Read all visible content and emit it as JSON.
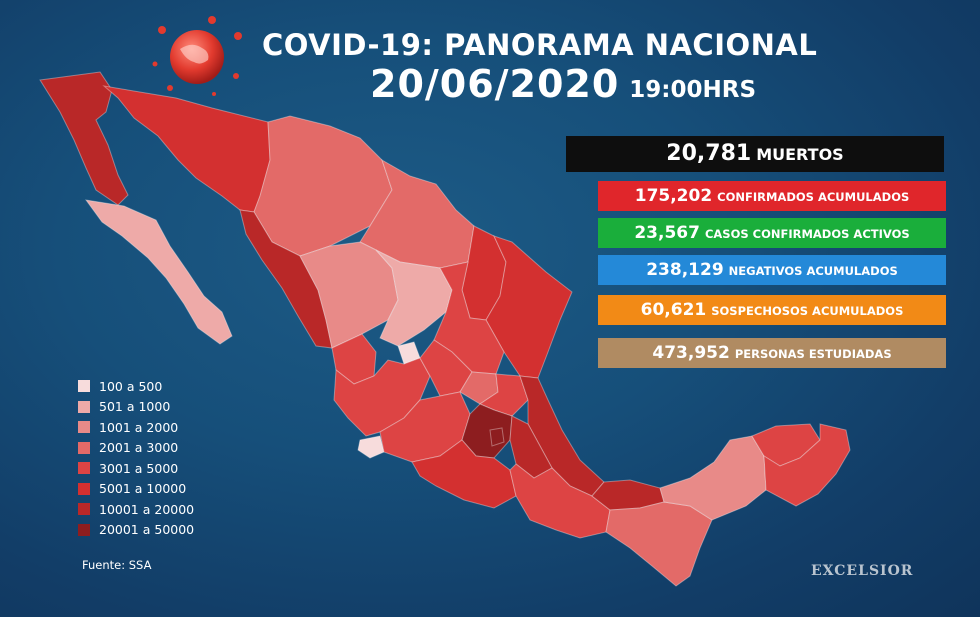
{
  "title": "COVID-19: PANORAMA NACIONAL",
  "date": "20/06/2020",
  "time": "19:00HRS",
  "stats": [
    {
      "value": "20,781",
      "label": "MUERTOS",
      "color": "#0e0e0e"
    },
    {
      "value": "175,202",
      "label": "CONFIRMADOS ACUMULADOS",
      "color": "#e0262b"
    },
    {
      "value": "23,567",
      "label": "CASOS CONFIRMADOS ACTIVOS",
      "color": "#1aae3b"
    },
    {
      "value": "238,129",
      "label": "NEGATIVOS ACUMULADOS",
      "color": "#2489d8"
    },
    {
      "value": "60,621",
      "label": "SOSPECHOSOS ACUMULADOS",
      "color": "#f28a16"
    },
    {
      "value": "473,952",
      "label": "PERSONAS ESTUDIADAS",
      "color": "#b08b62"
    }
  ],
  "legend": [
    {
      "label": "100 a 500",
      "color": "#f7dcdc"
    },
    {
      "label": "501 a 1000",
      "color": "#eeaaa8"
    },
    {
      "label": "1001 a 2000",
      "color": "#e88a88"
    },
    {
      "label": "2001 a 3000",
      "color": "#e36a68"
    },
    {
      "label": "3001 a 5000",
      "color": "#dd4444"
    },
    {
      "label": "5001 a 10000",
      "color": "#d33030"
    },
    {
      "label": "10001 a 20000",
      "color": "#b92828"
    },
    {
      "label": "20001 a 50000",
      "color": "#8d1d1f"
    }
  ],
  "source": "Fuente: SSA",
  "brand": "EXCELSIOR",
  "map_regions": [
    {
      "name": "baja-california",
      "bin": 6
    },
    {
      "name": "baja-california-sur",
      "bin": 1
    },
    {
      "name": "sonora",
      "bin": 5
    },
    {
      "name": "chihuahua",
      "bin": 3
    },
    {
      "name": "coahuila",
      "bin": 3
    },
    {
      "name": "nuevo-leon",
      "bin": 5
    },
    {
      "name": "tamaulipas",
      "bin": 5
    },
    {
      "name": "sinaloa",
      "bin": 6
    },
    {
      "name": "durango",
      "bin": 2
    },
    {
      "name": "zacatecas",
      "bin": 1
    },
    {
      "name": "san-luis-potosi",
      "bin": 4
    },
    {
      "name": "nayarit",
      "bin": 4
    },
    {
      "name": "aguascalientes",
      "bin": 0
    },
    {
      "name": "jalisco",
      "bin": 4
    },
    {
      "name": "guanajuato",
      "bin": 4
    },
    {
      "name": "queretaro",
      "bin": 3
    },
    {
      "name": "hidalgo",
      "bin": 4
    },
    {
      "name": "veracruz",
      "bin": 6
    },
    {
      "name": "colima",
      "bin": 0
    },
    {
      "name": "michoacan",
      "bin": 4
    },
    {
      "name": "estado-de-mexico",
      "bin": 7
    },
    {
      "name": "cdmx",
      "bin": 7
    },
    {
      "name": "puebla",
      "bin": 6
    },
    {
      "name": "guerrero",
      "bin": 5
    },
    {
      "name": "oaxaca",
      "bin": 4
    },
    {
      "name": "chiapas",
      "bin": 3
    },
    {
      "name": "tabasco",
      "bin": 6
    },
    {
      "name": "campeche",
      "bin": 2
    },
    {
      "name": "yucatan",
      "bin": 4
    },
    {
      "name": "quintana-roo",
      "bin": 4
    }
  ]
}
